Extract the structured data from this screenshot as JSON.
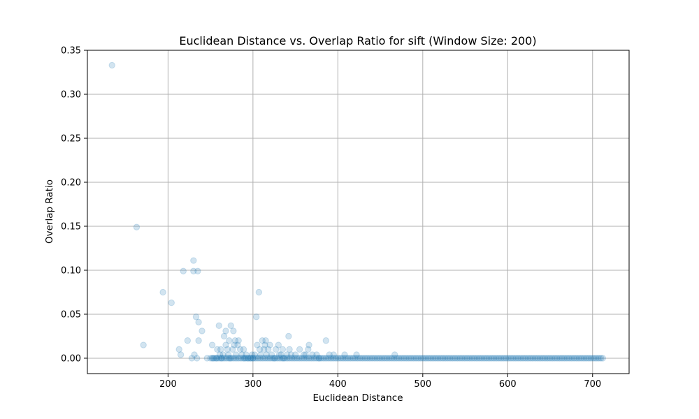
{
  "chart_data": {
    "type": "scatter",
    "title": "Euclidean Distance vs. Overlap Ratio for sift (Window Size: 200)",
    "xlabel": "Euclidean Distance",
    "ylabel": "Overlap Ratio",
    "xlim": [
      105,
      743
    ],
    "ylim": [
      -0.0175,
      0.35
    ],
    "xticks": [
      200,
      300,
      400,
      500,
      600,
      700
    ],
    "xtick_labels": [
      "200",
      "300",
      "400",
      "500",
      "600",
      "700"
    ],
    "yticks": [
      0.0,
      0.05,
      0.1,
      0.15,
      0.2,
      0.25,
      0.3,
      0.35
    ],
    "ytick_labels": [
      "0.00",
      "0.05",
      "0.10",
      "0.15",
      "0.20",
      "0.25",
      "0.30",
      "0.35"
    ],
    "grid": true,
    "marker_color": "#1f77b4",
    "marker_alpha": 0.2,
    "series": [
      {
        "x": [
          134,
          163,
          171,
          194,
          204,
          213,
          215,
          218,
          223,
          228,
          230,
          230,
          231,
          233,
          234,
          235,
          236,
          236,
          240,
          246,
          252,
          253,
          257,
          258,
          260,
          261,
          262,
          263,
          265,
          266,
          268,
          268,
          270,
          271,
          272,
          273,
          274,
          276,
          277,
          278,
          279,
          280,
          282,
          283,
          285,
          287,
          289,
          290,
          292,
          294,
          297,
          299,
          300,
          302,
          304,
          305,
          307,
          308,
          309,
          311,
          313,
          314,
          315,
          316,
          318,
          320,
          322,
          325,
          327,
          330,
          331,
          333,
          335,
          336,
          340,
          342,
          343,
          345,
          350,
          355,
          360,
          362,
          365,
          366,
          370,
          375,
          378,
          386,
          390,
          395,
          408,
          422,
          467
        ],
        "y": [
          0.333,
          0.149,
          0.015,
          0.075,
          0.063,
          0.01,
          0.004,
          0.099,
          0.02,
          0.0,
          0.111,
          0.099,
          0.004,
          0.047,
          0.0,
          0.099,
          0.02,
          0.041,
          0.031,
          0.0,
          0.015,
          0.0,
          0.0,
          0.01,
          0.037,
          0.004,
          0.01,
          0.0,
          0.004,
          0.025,
          0.031,
          0.015,
          0.01,
          0.004,
          0.02,
          0.0,
          0.037,
          0.01,
          0.031,
          0.015,
          0.02,
          0.004,
          0.015,
          0.02,
          0.01,
          0.004,
          0.01,
          0.0,
          0.004,
          0.0,
          0.0,
          0.004,
          0.0,
          0.004,
          0.047,
          0.015,
          0.075,
          0.01,
          0.004,
          0.02,
          0.01,
          0.015,
          0.02,
          0.004,
          0.01,
          0.015,
          0.004,
          0.0,
          0.01,
          0.015,
          0.004,
          0.004,
          0.01,
          0.0,
          0.004,
          0.025,
          0.01,
          0.004,
          0.004,
          0.01,
          0.004,
          0.004,
          0.01,
          0.015,
          0.004,
          0.004,
          0.0,
          0.02,
          0.004,
          0.004,
          0.004,
          0.004,
          0.004
        ]
      },
      {
        "type": "dense_band",
        "y": 0.0,
        "x_start": 250,
        "x_end": 712,
        "x_step": 2
      }
    ]
  }
}
